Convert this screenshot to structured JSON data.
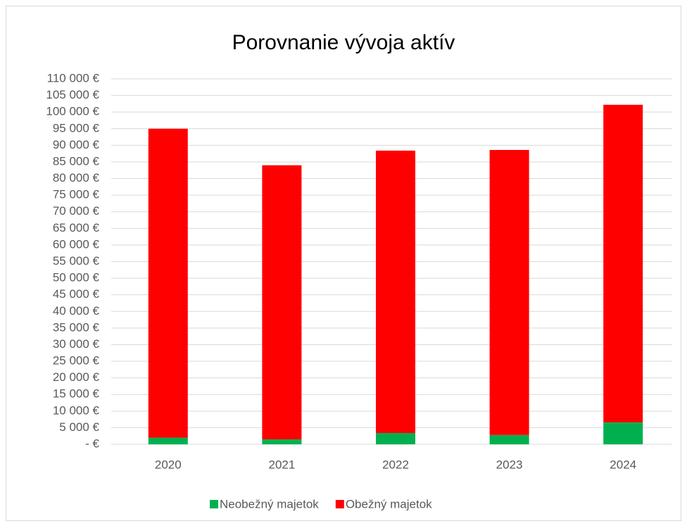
{
  "chart_data": {
    "type": "stacked_bar",
    "title": "Porovnanie vývoja aktív",
    "categories": [
      "2020",
      "2021",
      "2022",
      "2023",
      "2024"
    ],
    "series": [
      {
        "name": "Neobežný majetok",
        "color": "#00b050",
        "values": [
          2000,
          1500,
          3400,
          2800,
          6600
        ]
      },
      {
        "name": "Obežný majetok",
        "color": "#ff0000",
        "values": [
          93000,
          82500,
          85000,
          85800,
          95600
        ]
      }
    ],
    "ylim": [
      0,
      110000
    ],
    "yticks": [
      {
        "value": 0,
        "label": "-  €"
      },
      {
        "value": 5000,
        "label": "5 000 €"
      },
      {
        "value": 10000,
        "label": "10 000 €"
      },
      {
        "value": 15000,
        "label": "15 000 €"
      },
      {
        "value": 20000,
        "label": "20 000 €"
      },
      {
        "value": 25000,
        "label": "25 000 €"
      },
      {
        "value": 30000,
        "label": "30 000 €"
      },
      {
        "value": 35000,
        "label": "35 000 €"
      },
      {
        "value": 40000,
        "label": "40 000 €"
      },
      {
        "value": 45000,
        "label": "45 000 €"
      },
      {
        "value": 50000,
        "label": "50 000 €"
      },
      {
        "value": 55000,
        "label": "55 000 €"
      },
      {
        "value": 60000,
        "label": "60 000 €"
      },
      {
        "value": 65000,
        "label": "65 000 €"
      },
      {
        "value": 70000,
        "label": "70 000 €"
      },
      {
        "value": 75000,
        "label": "75 000 €"
      },
      {
        "value": 80000,
        "label": "80 000 €"
      },
      {
        "value": 85000,
        "label": "85 000 €"
      },
      {
        "value": 90000,
        "label": "90 000 €"
      },
      {
        "value": 95000,
        "label": "95 000 €"
      },
      {
        "value": 100000,
        "label": "100 000 €"
      },
      {
        "value": 105000,
        "label": "105 000 €"
      },
      {
        "value": 110000,
        "label": "110 000 €"
      }
    ],
    "grid": true,
    "legend": "bottom"
  }
}
